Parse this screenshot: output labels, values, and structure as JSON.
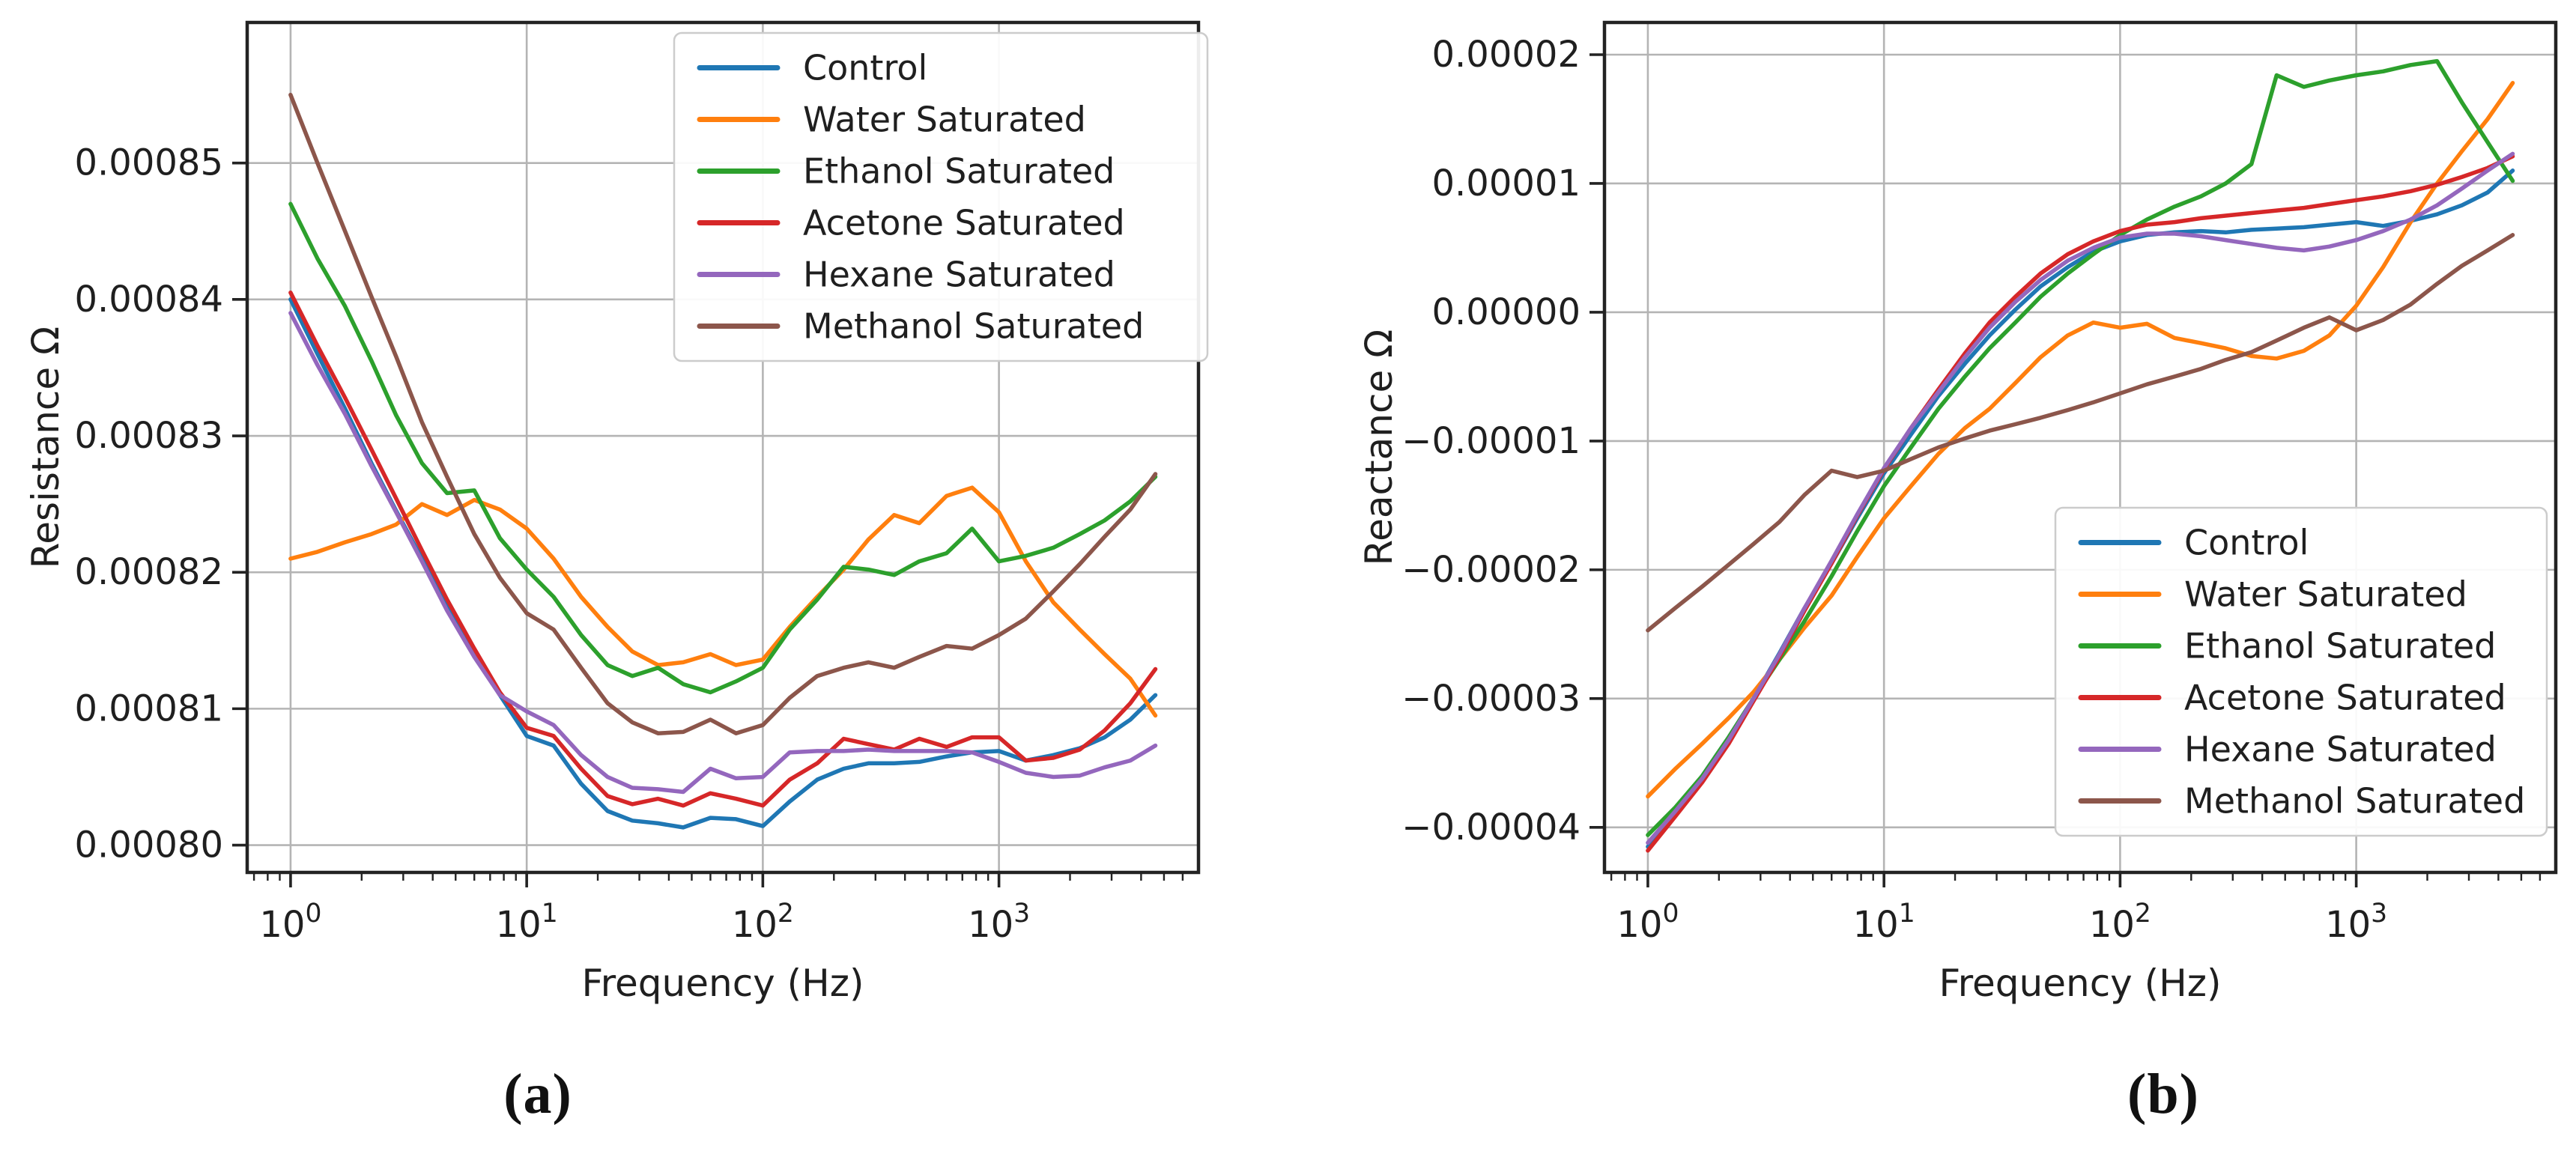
{
  "figure": {
    "captions": {
      "a": "(a)",
      "b": "(b)"
    },
    "background_color": "#ffffff",
    "grid_color": "#b4b4b4",
    "spine_color": "#232323",
    "text_color": "#1f1f1f",
    "legend_border_color": "#cccccc"
  },
  "chart_data": [
    {
      "id": "resistance-vs-frequency",
      "type": "line",
      "title": "",
      "xlabel": "Frequency (Hz)",
      "ylabel": "Resistance Ω",
      "x_scale": "log",
      "grid": true,
      "legend_position": "upper right",
      "xlim": [
        0.655,
        7000
      ],
      "ylim": [
        0.000798,
        0.0008603
      ],
      "x_ticks": [
        {
          "value": 1,
          "base": "10",
          "exp": "0"
        },
        {
          "value": 10,
          "base": "10",
          "exp": "1"
        },
        {
          "value": 100,
          "base": "10",
          "exp": "2"
        },
        {
          "value": 1000,
          "base": "10",
          "exp": "3"
        }
      ],
      "y_ticks": [
        {
          "value": 0.00085,
          "label": "0.00085"
        },
        {
          "value": 0.00084,
          "label": "0.00084"
        },
        {
          "value": 0.00083,
          "label": "0.00083"
        },
        {
          "value": 0.00082,
          "label": "0.00082"
        },
        {
          "value": 0.00081,
          "label": "0.00081"
        },
        {
          "value": 0.0008,
          "label": "0.00080"
        }
      ],
      "x": [
        1,
        1.3,
        1.7,
        2.2,
        2.8,
        3.6,
        4.6,
        6,
        7.7,
        10,
        13,
        17,
        22,
        28,
        36,
        46,
        60,
        77,
        100,
        130,
        170,
        220,
        280,
        360,
        460,
        600,
        770,
        1000,
        1300,
        1700,
        2200,
        2800,
        3600,
        4600
      ],
      "series": [
        {
          "name": "Control",
          "color": "#1f77b4",
          "values": [
            0.00084,
            0.000836,
            0.000832,
            0.000828,
            0.0008245,
            0.000821,
            0.0008175,
            0.000814,
            0.000811,
            0.000808,
            0.0008073,
            0.0008045,
            0.0008025,
            0.0008018,
            0.0008016,
            0.0008013,
            0.000802,
            0.0008019,
            0.0008014,
            0.0008032,
            0.0008048,
            0.0008056,
            0.000806,
            0.000806,
            0.0008061,
            0.0008065,
            0.0008068,
            0.0008069,
            0.0008062,
            0.0008066,
            0.0008071,
            0.0008079,
            0.0008092,
            0.000811
          ]
        },
        {
          "name": "Water Saturated",
          "color": "#ff7f0e",
          "values": [
            0.000821,
            0.0008215,
            0.0008222,
            0.0008228,
            0.0008235,
            0.000825,
            0.0008242,
            0.0008253,
            0.0008246,
            0.0008232,
            0.000821,
            0.0008182,
            0.000816,
            0.0008142,
            0.0008132,
            0.0008134,
            0.000814,
            0.0008132,
            0.0008136,
            0.000816,
            0.0008182,
            0.0008202,
            0.0008224,
            0.0008242,
            0.0008236,
            0.0008256,
            0.0008262,
            0.0008244,
            0.0008208,
            0.0008178,
            0.0008158,
            0.000814,
            0.0008122,
            0.0008095
          ]
        },
        {
          "name": "Ethanol Saturated",
          "color": "#2ca02c",
          "values": [
            0.000847,
            0.000843,
            0.0008395,
            0.0008355,
            0.0008315,
            0.000828,
            0.0008258,
            0.000826,
            0.0008225,
            0.0008202,
            0.0008182,
            0.0008154,
            0.0008132,
            0.0008124,
            0.000813,
            0.0008118,
            0.0008112,
            0.000812,
            0.000813,
            0.0008158,
            0.000818,
            0.0008204,
            0.0008202,
            0.0008198,
            0.0008208,
            0.0008214,
            0.0008232,
            0.0008208,
            0.0008212,
            0.0008218,
            0.0008228,
            0.0008238,
            0.0008252,
            0.000827
          ]
        },
        {
          "name": "Acetone Saturated",
          "color": "#d62728",
          "values": [
            0.0008405,
            0.0008366,
            0.0008328,
            0.000829,
            0.0008254,
            0.0008216,
            0.000818,
            0.0008144,
            0.0008112,
            0.0008086,
            0.000808,
            0.0008056,
            0.0008036,
            0.000803,
            0.0008034,
            0.0008029,
            0.0008038,
            0.0008034,
            0.0008029,
            0.0008048,
            0.000806,
            0.0008078,
            0.0008074,
            0.000807,
            0.0008078,
            0.0008072,
            0.0008079,
            0.0008079,
            0.0008062,
            0.0008064,
            0.000807,
            0.0008084,
            0.0008104,
            0.0008129
          ]
        },
        {
          "name": "Hexane Saturated",
          "color": "#9467bd",
          "values": [
            0.000839,
            0.0008352,
            0.0008316,
            0.0008278,
            0.0008244,
            0.0008208,
            0.0008172,
            0.0008138,
            0.000811,
            0.0008098,
            0.0008088,
            0.0008066,
            0.000805,
            0.0008042,
            0.0008041,
            0.0008039,
            0.0008056,
            0.0008049,
            0.000805,
            0.0008068,
            0.0008069,
            0.0008069,
            0.000807,
            0.0008069,
            0.0008069,
            0.0008069,
            0.0008068,
            0.0008061,
            0.0008053,
            0.000805,
            0.0008051,
            0.0008057,
            0.0008062,
            0.0008073
          ]
        },
        {
          "name": "Methanol Saturated",
          "color": "#8c564b",
          "values": [
            0.000855,
            0.00085,
            0.000845,
            0.0008402,
            0.0008358,
            0.000831,
            0.000827,
            0.0008228,
            0.0008196,
            0.000817,
            0.0008158,
            0.000813,
            0.0008104,
            0.000809,
            0.0008082,
            0.0008083,
            0.0008092,
            0.0008082,
            0.0008088,
            0.0008108,
            0.0008124,
            0.000813,
            0.0008134,
            0.000813,
            0.0008138,
            0.0008146,
            0.0008144,
            0.0008154,
            0.0008166,
            0.0008186,
            0.0008206,
            0.0008226,
            0.0008246,
            0.0008272
          ]
        }
      ]
    },
    {
      "id": "reactance-vs-frequency",
      "type": "line",
      "title": "",
      "xlabel": "Frequency (Hz)",
      "ylabel": "Reactance Ω",
      "x_scale": "log",
      "grid": true,
      "legend_position": "center right",
      "xlim": [
        0.655,
        7000
      ],
      "ylim": [
        -4.35e-05,
        2.25e-05
      ],
      "x_ticks": [
        {
          "value": 1,
          "base": "10",
          "exp": "0"
        },
        {
          "value": 10,
          "base": "10",
          "exp": "1"
        },
        {
          "value": 100,
          "base": "10",
          "exp": "2"
        },
        {
          "value": 1000,
          "base": "10",
          "exp": "3"
        }
      ],
      "y_ticks": [
        {
          "value": 2e-05,
          "label": "0.00002"
        },
        {
          "value": 1e-05,
          "label": "0.00001"
        },
        {
          "value": 0.0,
          "label": "0.00000"
        },
        {
          "value": -1e-05,
          "label": "−0.00001"
        },
        {
          "value": -2e-05,
          "label": "−0.00002"
        },
        {
          "value": -3e-05,
          "label": "−0.00003"
        },
        {
          "value": -4e-05,
          "label": "−0.00004"
        }
      ],
      "x": [
        1,
        1.3,
        1.7,
        2.2,
        2.8,
        3.6,
        4.6,
        6,
        7.7,
        10,
        13,
        17,
        22,
        28,
        36,
        46,
        60,
        77,
        100,
        130,
        170,
        220,
        280,
        360,
        460,
        600,
        770,
        1000,
        1300,
        1700,
        2200,
        2800,
        3600,
        4600
      ],
      "series": [
        {
          "name": "Control",
          "color": "#1f77b4",
          "values": [
            -4.15e-05,
            -3.9e-05,
            -3.6e-05,
            -3.3e-05,
            -3e-05,
            -2.65e-05,
            -2.3e-05,
            -1.95e-05,
            -1.6e-05,
            -1.25e-05,
            -9.5e-06,
            -6.5e-06,
            -4e-06,
            -1.8e-06,
            2e-07,
            2e-06,
            3.5e-06,
            4.7e-06,
            5.5e-06,
            6e-06,
            6.2e-06,
            6.3e-06,
            6.2e-06,
            6.4e-06,
            6.5e-06,
            6.6e-06,
            6.8e-06,
            7e-06,
            6.7e-06,
            7.1e-06,
            7.6e-06,
            8.3e-06,
            9.3e-06,
            1.1e-05
          ]
        },
        {
          "name": "Water Saturated",
          "color": "#ff7f0e",
          "values": [
            -3.76e-05,
            -3.55e-05,
            -3.35e-05,
            -3.15e-05,
            -2.95e-05,
            -2.7e-05,
            -2.45e-05,
            -2.2e-05,
            -1.9e-05,
            -1.6e-05,
            -1.35e-05,
            -1.1e-05,
            -9e-06,
            -7.5e-06,
            -5.5e-06,
            -3.5e-06,
            -1.8e-06,
            -8e-07,
            -1.2e-06,
            -9e-07,
            -2e-06,
            -2.4e-06,
            -2.8e-06,
            -3.4e-06,
            -3.6e-06,
            -3e-06,
            -1.8e-06,
            5e-07,
            3.5e-06,
            7e-06,
            1e-05,
            1.25e-05,
            1.5e-05,
            1.78e-05
          ]
        },
        {
          "name": "Ethanol Saturated",
          "color": "#2ca02c",
          "values": [
            -4.06e-05,
            -3.85e-05,
            -3.6e-05,
            -3.3e-05,
            -3e-05,
            -2.7e-05,
            -2.4e-05,
            -2.05e-05,
            -1.7e-05,
            -1.35e-05,
            -1.05e-05,
            -7.5e-06,
            -5e-06,
            -2.8e-06,
            -8e-07,
            1.2e-06,
            3e-06,
            4.5e-06,
            6e-06,
            7.2e-06,
            8.2e-06,
            9e-06,
            1e-05,
            1.15e-05,
            1.84e-05,
            1.75e-05,
            1.8e-05,
            1.84e-05,
            1.87e-05,
            1.92e-05,
            1.95e-05,
            1.63e-05,
            1.32e-05,
            1.02e-05
          ]
        },
        {
          "name": "Acetone Saturated",
          "color": "#d62728",
          "values": [
            -4.18e-05,
            -3.92e-05,
            -3.65e-05,
            -3.35e-05,
            -3.02e-05,
            -2.68e-05,
            -2.32e-05,
            -1.95e-05,
            -1.58e-05,
            -1.22e-05,
            -9e-06,
            -6e-06,
            -3.2e-06,
            -8e-07,
            1.2e-06,
            3e-06,
            4.5e-06,
            5.5e-06,
            6.3e-06,
            6.8e-06,
            7e-06,
            7.3e-06,
            7.5e-06,
            7.7e-06,
            7.9e-06,
            8.1e-06,
            8.4e-06,
            8.7e-06,
            9e-06,
            9.4e-06,
            9.9e-06,
            1.05e-05,
            1.12e-05,
            1.21e-05
          ]
        },
        {
          "name": "Hexane Saturated",
          "color": "#9467bd",
          "values": [
            -4.12e-05,
            -3.88e-05,
            -3.62e-05,
            -3.32e-05,
            -3e-05,
            -2.66e-05,
            -2.3e-05,
            -1.93e-05,
            -1.57e-05,
            -1.21e-05,
            -9e-06,
            -6.2e-06,
            -3.5e-06,
            -1.2e-06,
            8e-07,
            2.5e-06,
            4e-06,
            5e-06,
            5.8e-06,
            6.1e-06,
            6.1e-06,
            5.9e-06,
            5.6e-06,
            5.3e-06,
            5e-06,
            4.8e-06,
            5.1e-06,
            5.6e-06,
            6.3e-06,
            7.2e-06,
            8.3e-06,
            9.6e-06,
            1.1e-05,
            1.23e-05
          ]
        },
        {
          "name": "Methanol Saturated",
          "color": "#8c564b",
          "values": [
            -2.47e-05,
            -2.3e-05,
            -2.13e-05,
            -1.96e-05,
            -1.8e-05,
            -1.63e-05,
            -1.42e-05,
            -1.23e-05,
            -1.28e-05,
            -1.23e-05,
            -1.14e-05,
            -1.05e-05,
            -9.8e-06,
            -9.2e-06,
            -8.7e-06,
            -8.2e-06,
            -7.6e-06,
            -7e-06,
            -6.3e-06,
            -5.6e-06,
            -5e-06,
            -4.4e-06,
            -3.7e-06,
            -3.1e-06,
            -2.2e-06,
            -1.2e-06,
            -4e-07,
            -1.4e-06,
            -6e-07,
            6e-07,
            2.2e-06,
            3.6e-06,
            4.8e-06,
            6e-06
          ]
        }
      ]
    }
  ]
}
